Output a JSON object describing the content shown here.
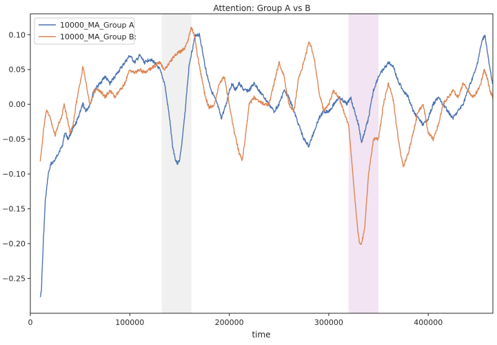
{
  "chart_data": {
    "type": "line",
    "title": "Attention: Group A vs B",
    "xlabel": "time",
    "ylabel": "",
    "xlim": [
      0,
      465000
    ],
    "ylim": [
      -0.3,
      0.13
    ],
    "xticks": [
      0,
      100000,
      200000,
      300000,
      400000
    ],
    "xtick_labels": [
      "0",
      "100000",
      "200000",
      "300000",
      "400000"
    ],
    "yticks": [
      0.1,
      0.05,
      0.0,
      -0.05,
      -0.1,
      -0.15,
      -0.2,
      -0.25
    ],
    "ytick_labels": [
      "0.10",
      "0.05",
      "0.00",
      "−0.05",
      "−0.10",
      "−0.15",
      "−0.20",
      "−0.25"
    ],
    "grid": false,
    "legend_position": "top-left",
    "shaded_regions": [
      {
        "x0": 132000,
        "x1": 162000,
        "color": "#e6e6e6"
      },
      {
        "x0": 320000,
        "x1": 350000,
        "color": "#ead2ea"
      }
    ],
    "series": [
      {
        "name": "10000_MA_Group A",
        "color": "#4c72b0",
        "x": [
          10000,
          11000,
          13000,
          15000,
          18000,
          21000,
          25000,
          28000,
          32000,
          35000,
          38000,
          41000,
          45000,
          48000,
          50000,
          53000,
          56000,
          60000,
          64000,
          70000,
          75000,
          80000,
          85000,
          90000,
          95000,
          100000,
          105000,
          110000,
          115000,
          120000,
          125000,
          130000,
          135000,
          140000,
          143000,
          146000,
          148000,
          150000,
          152000,
          155000,
          158000,
          160000,
          163000,
          166000,
          170000,
          172000,
          175000,
          178000,
          182000,
          188000,
          192000,
          197000,
          200000,
          203000,
          206000,
          210000,
          215000,
          220000,
          225000,
          230000,
          235000,
          240000,
          245000,
          250000,
          255000,
          260000,
          265000,
          270000,
          275000,
          280000,
          285000,
          290000,
          295000,
          300000,
          305000,
          310000,
          315000,
          318000,
          322000,
          326000,
          330000,
          333000,
          336000,
          340000,
          345000,
          350000,
          355000,
          360000,
          365000,
          368000,
          371000,
          375000,
          380000,
          385000,
          390000,
          395000,
          400000,
          405000,
          410000,
          415000,
          420000,
          425000,
          430000,
          435000,
          440000,
          445000,
          448000,
          451000,
          454000,
          457000,
          460000,
          462000,
          465000
        ],
        "y": [
          -0.275,
          -0.27,
          -0.2,
          -0.14,
          -0.1,
          -0.085,
          -0.08,
          -0.07,
          -0.06,
          -0.04,
          -0.05,
          -0.04,
          -0.03,
          -0.02,
          -0.01,
          0.0,
          -0.01,
          0.0,
          0.02,
          0.03,
          0.04,
          0.03,
          0.04,
          0.05,
          0.06,
          0.07,
          0.06,
          0.07,
          0.06,
          0.065,
          0.06,
          0.05,
          0.03,
          -0.02,
          -0.06,
          -0.08,
          -0.085,
          -0.08,
          -0.06,
          -0.02,
          0.03,
          0.06,
          0.08,
          0.1,
          0.1,
          0.085,
          0.06,
          0.04,
          0.02,
          0.0,
          -0.02,
          0.0,
          0.02,
          0.03,
          0.02,
          0.03,
          0.02,
          0.02,
          0.03,
          0.02,
          0.01,
          0.0,
          -0.01,
          0.0,
          0.02,
          0.01,
          -0.01,
          -0.03,
          -0.05,
          -0.06,
          -0.04,
          -0.02,
          -0.01,
          -0.01,
          0.0,
          0.01,
          0.005,
          0.0,
          0.01,
          -0.01,
          -0.03,
          -0.055,
          -0.04,
          -0.02,
          0.02,
          0.04,
          0.05,
          0.06,
          0.055,
          0.04,
          0.03,
          0.02,
          0.01,
          -0.01,
          -0.02,
          -0.03,
          -0.02,
          0.0,
          0.01,
          0.0,
          -0.01,
          -0.02,
          -0.01,
          0.0,
          0.02,
          0.04,
          0.05,
          0.07,
          0.09,
          0.1,
          0.07,
          0.05,
          0.03
        ]
      },
      {
        "name": "10000_MA_Group B:",
        "color": "#dd8452",
        "x": [
          10000,
          11000,
          13000,
          16000,
          19000,
          22000,
          25000,
          28000,
          31000,
          34000,
          37000,
          40000,
          43000,
          46000,
          50000,
          53000,
          55000,
          57000,
          60000,
          65000,
          70000,
          75000,
          80000,
          85000,
          90000,
          95000,
          100000,
          105000,
          110000,
          115000,
          120000,
          125000,
          130000,
          135000,
          140000,
          145000,
          150000,
          155000,
          158000,
          160000,
          162000,
          165000,
          168000,
          172000,
          176000,
          180000,
          185000,
          190000,
          195000,
          200000,
          205000,
          210000,
          213000,
          216000,
          220000,
          225000,
          230000,
          235000,
          240000,
          245000,
          250000,
          255000,
          260000,
          265000,
          270000,
          275000,
          280000,
          283000,
          286000,
          290000,
          295000,
          300000,
          305000,
          310000,
          315000,
          320000,
          323000,
          326000,
          329000,
          331000,
          333000,
          336000,
          340000,
          345000,
          350000,
          355000,
          360000,
          365000,
          368000,
          371000,
          375000,
          380000,
          385000,
          390000,
          395000,
          400000,
          405000,
          410000,
          415000,
          420000,
          425000,
          430000,
          435000,
          440000,
          445000,
          450000,
          453000,
          456000,
          459000,
          462000,
          465000
        ],
        "y": [
          -0.08,
          -0.07,
          -0.04,
          -0.01,
          -0.015,
          -0.03,
          -0.045,
          -0.03,
          -0.02,
          0.0,
          -0.02,
          -0.04,
          -0.03,
          0.0,
          0.03,
          0.055,
          0.04,
          0.02,
          0.0,
          0.02,
          0.02,
          0.01,
          0.02,
          0.01,
          0.02,
          0.03,
          0.05,
          0.045,
          0.05,
          0.045,
          0.05,
          0.055,
          0.06,
          0.05,
          0.06,
          0.07,
          0.075,
          0.08,
          0.09,
          0.1,
          0.11,
          0.1,
          0.07,
          0.04,
          0.01,
          -0.005,
          0.0,
          0.03,
          0.04,
          0.0,
          -0.04,
          -0.07,
          -0.08,
          -0.05,
          0.0,
          0.01,
          0.005,
          0.0,
          0.0,
          0.03,
          0.06,
          0.04,
          0.0,
          -0.01,
          0.04,
          0.06,
          0.09,
          0.08,
          0.06,
          0.02,
          -0.01,
          0.0,
          0.02,
          0.01,
          -0.01,
          -0.03,
          -0.08,
          -0.13,
          -0.18,
          -0.2,
          -0.2,
          -0.18,
          -0.1,
          -0.05,
          -0.05,
          0.0,
          0.03,
          0.005,
          -0.03,
          -0.06,
          -0.09,
          -0.07,
          -0.04,
          -0.01,
          0.0,
          -0.04,
          -0.05,
          -0.03,
          0.0,
          0.01,
          0.02,
          0.01,
          0.03,
          0.02,
          0.01,
          0.02,
          0.03,
          0.05,
          0.04,
          0.02,
          0.01
        ]
      }
    ]
  }
}
